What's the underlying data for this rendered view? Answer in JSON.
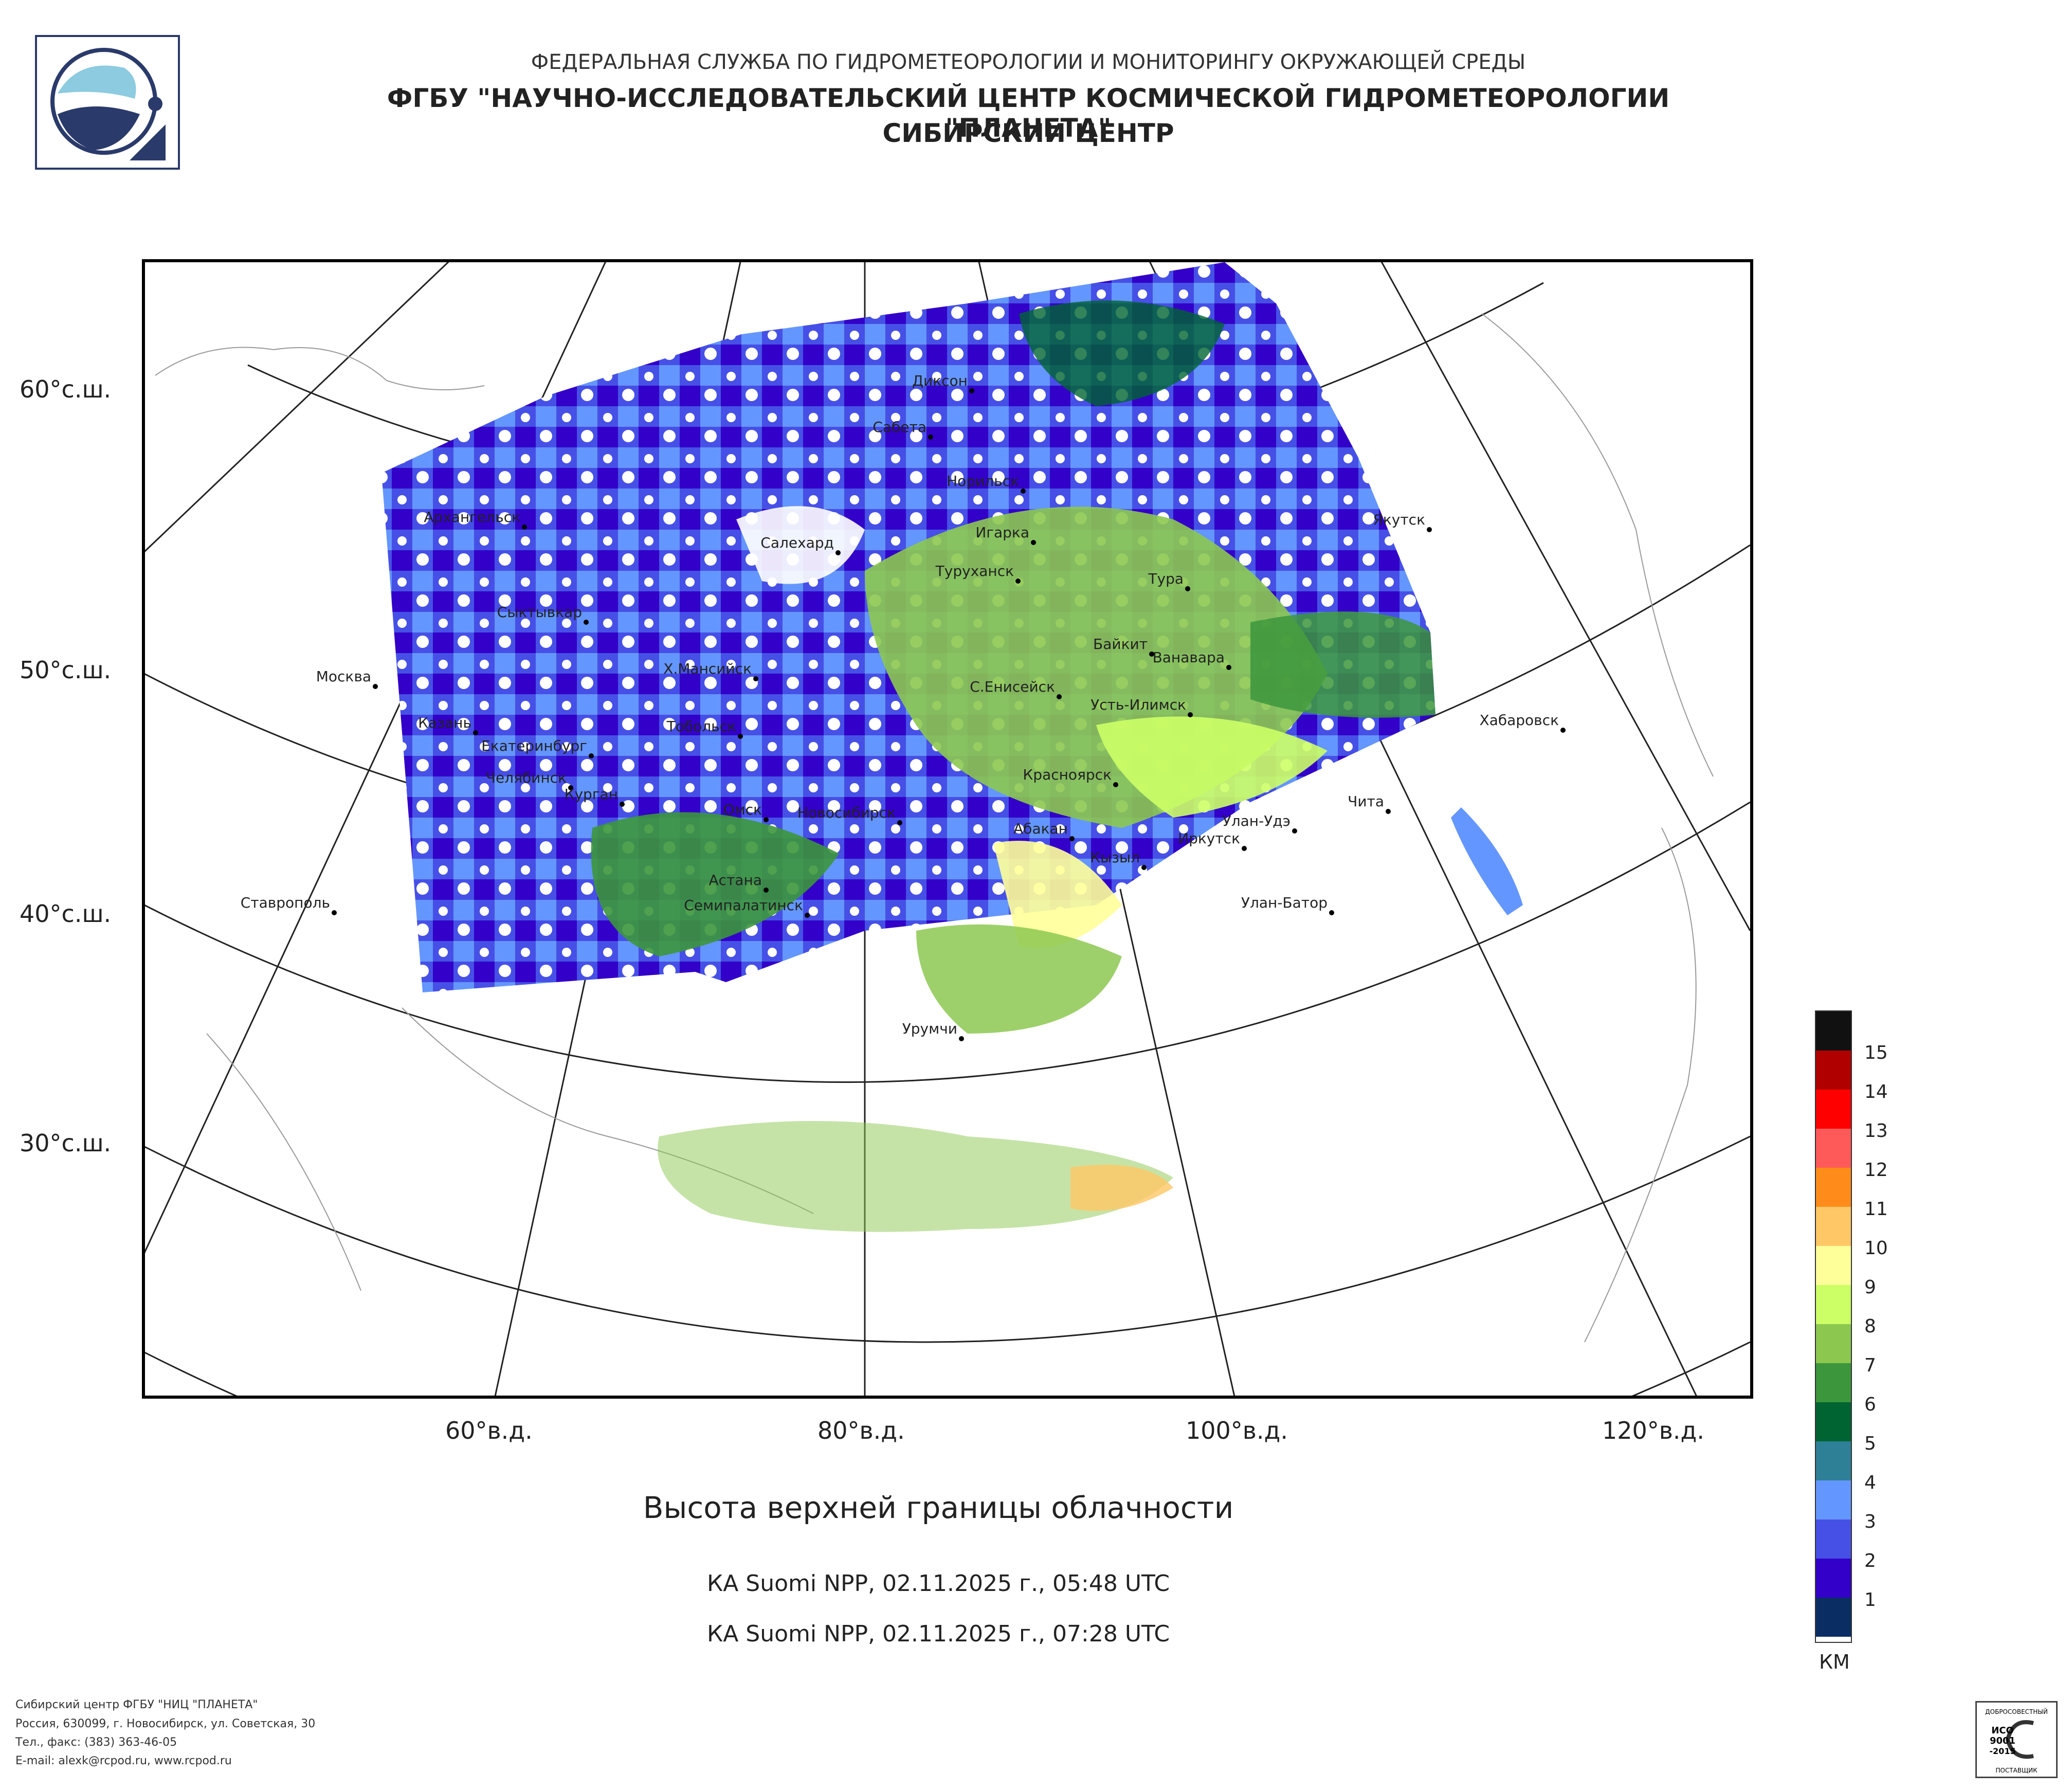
{
  "header": {
    "line1": "ФЕДЕРАЛЬНАЯ СЛУЖБА ПО ГИДРОМЕТЕОРОЛОГИИ И МОНИТОРИНГУ ОКРУЖАЮЩЕЙ СРЕДЫ",
    "line2": "ФГБУ \"НАУЧНО-ИССЛЕДОВАТЕЛЬСКИЙ ЦЕНТР КОСМИЧЕСКОЙ ГИДРОМЕТЕОРОЛОГИИ \"ПЛАНЕТА\"",
    "line3": "СИБИРСКИЙ ЦЕНТР"
  },
  "map": {
    "lat_labels": [
      "60°с.ш.",
      "50°с.ш.",
      "40°с.ш.",
      "30°с.ш."
    ],
    "lon_labels": [
      "60°в.д.",
      "80°в.д.",
      "100°в.д.",
      "120°в.д."
    ],
    "cities": [
      {
        "name": "Диксон"
      },
      {
        "name": "Сабета"
      },
      {
        "name": "Норильск"
      },
      {
        "name": "Архангельск"
      },
      {
        "name": "Игарка"
      },
      {
        "name": "Салехард"
      },
      {
        "name": "Якутск"
      },
      {
        "name": "Туруханск"
      },
      {
        "name": "Тура"
      },
      {
        "name": "Сыктывкар"
      },
      {
        "name": "Байкит"
      },
      {
        "name": "Ванавара"
      },
      {
        "name": "Москва"
      },
      {
        "name": "Х.Мансийск"
      },
      {
        "name": "С.Енисейск"
      },
      {
        "name": "Усть-Илимск"
      },
      {
        "name": "Казань"
      },
      {
        "name": "Тобольск"
      },
      {
        "name": "Екатеринбург"
      },
      {
        "name": "Хабаровск"
      },
      {
        "name": "Красноярск"
      },
      {
        "name": "Челябинск"
      },
      {
        "name": "Курган"
      },
      {
        "name": "Омск"
      },
      {
        "name": "Чита"
      },
      {
        "name": "Новосибирск"
      },
      {
        "name": "Абакан"
      },
      {
        "name": "Улан-Удэ"
      },
      {
        "name": "Иркутск"
      },
      {
        "name": "Кызыл"
      },
      {
        "name": "Астана"
      },
      {
        "name": "Ставрополь"
      },
      {
        "name": "Семипалатинск"
      },
      {
        "name": "Улан-Батор"
      },
      {
        "name": "Урумчи"
      }
    ]
  },
  "title": "Высота верхней границы облачности",
  "passes": [
    "КА Suomi NPP, 02.11.2025 г., 05:48 UTC",
    "КА Suomi NPP, 02.11.2025 г., 07:28 UTC"
  ],
  "legend": {
    "unit": "КМ",
    "levels": [
      {
        "label": "15",
        "color": "#111111"
      },
      {
        "label": "14",
        "color": "#b10000"
      },
      {
        "label": "13",
        "color": "#ff0000"
      },
      {
        "label": "12",
        "color": "#ff5a5a"
      },
      {
        "label": "11",
        "color": "#ff8c1a"
      },
      {
        "label": "10",
        "color": "#ffc765"
      },
      {
        "label": "9",
        "color": "#ffff99"
      },
      {
        "label": "8",
        "color": "#ccff66"
      },
      {
        "label": "7",
        "color": "#8cc850"
      },
      {
        "label": "6",
        "color": "#3c963c"
      },
      {
        "label": "5",
        "color": "#006432"
      },
      {
        "label": "4",
        "color": "#2e8096"
      },
      {
        "label": "3",
        "color": "#6496ff"
      },
      {
        "label": "2",
        "color": "#4650e6"
      },
      {
        "label": "1",
        "color": "#3200c8"
      },
      {
        "label": "",
        "color": "#0a2d64"
      }
    ]
  },
  "footer": {
    "line1": "Сибирский центр ФГБУ \"НИЦ \"ПЛАНЕТА\"",
    "line2": "Россия, 630099, г. Новосибирск, ул. Советская, 30",
    "line3": "Тел., факс: (383) 363-46-05",
    "line4": "E-mail: alexk@rcpod.ru, www.rcpod.ru"
  },
  "iso_badge": {
    "top": "ДОБРОСОВЕСТНЫЙ",
    "l1": "ИСО",
    "l2": "9001",
    "l3": "-2015",
    "bottom": "ПОСТАВЩИК"
  }
}
